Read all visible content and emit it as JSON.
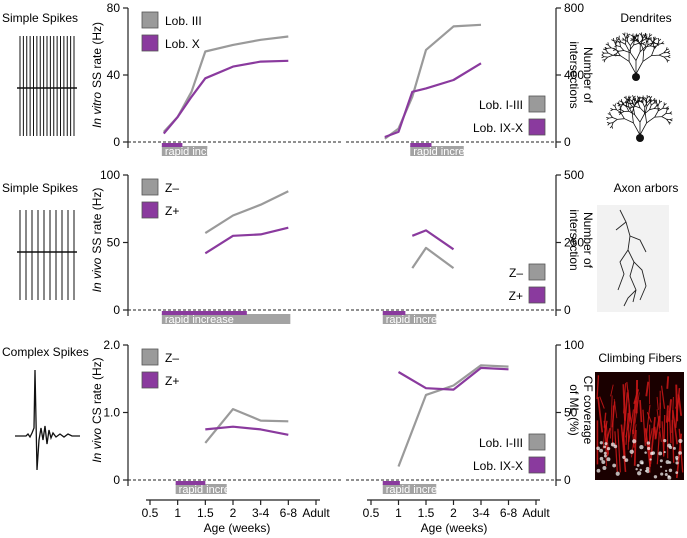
{
  "figure": {
    "xlabel": "Age (weeks)",
    "x_categories": [
      "0.5",
      "1",
      "1.5",
      "2",
      "3-4",
      "6-8",
      "Adult"
    ],
    "bar_label": "rapid increase"
  },
  "colors": {
    "gray": "#9a9a9a",
    "purple": "#8a3a9e",
    "axis": "#222222",
    "bar_gray": "#a3a3a3",
    "bar_purple": "#8a3a9e",
    "bar_text": "#ffffff",
    "dendrite": "#111111",
    "cf_red": "#d01818"
  },
  "rows": [
    {
      "side_label": "Simple Spikes",
      "left_ylabel_italic": "In vitro",
      "left_ylabel_rest": "SS rate (Hz)",
      "right_ylabel_line1": "Number of",
      "right_ylabel_line2": "intersections",
      "right_image_label": "Dendrites"
    },
    {
      "side_label": "Simple Spikes",
      "left_ylabel_italic": "In vivo",
      "left_ylabel_rest": "SS rate (Hz)",
      "right_ylabel_line1": "Number of",
      "right_ylabel_line2": "intersection",
      "right_image_label": "Axon arbors"
    },
    {
      "side_label": "Complex Spikes",
      "left_ylabel_italic": "In vivo",
      "left_ylabel_rest": "CS rate (Hz)",
      "right_ylabel_line1": "CF coverage",
      "right_ylabel_line2": "of ML (%)",
      "right_image_label": "Climbing Fibers"
    }
  ],
  "chart_data": [
    {
      "type": "line",
      "panel": "A-left",
      "ylim": [
        0,
        80
      ],
      "yticks": [
        "0",
        "40",
        "80"
      ],
      "legend_position": "top-left",
      "series": [
        {
          "name": "Lob. III",
          "color": "gray",
          "x": [
            0.5,
            1,
            1.5,
            2,
            3,
            4,
            5
          ],
          "y": [
            6,
            15,
            30,
            54,
            58,
            61,
            63
          ]
        },
        {
          "name": "Lob. X",
          "color": "purple",
          "x": [
            0.5,
            1,
            1.5,
            2,
            3,
            4,
            5
          ],
          "y": [
            5,
            15,
            27,
            38,
            45,
            48,
            48.5
          ]
        }
      ],
      "bars": [
        {
          "label": "rapid increase",
          "start": 0.5,
          "end": 2,
          "purple_end": 1.17
        }
      ]
    },
    {
      "type": "line",
      "panel": "A-right",
      "ylim": [
        0,
        800
      ],
      "yticks": [
        "0",
        "400",
        "800"
      ],
      "legend_position": "bottom-right",
      "series": [
        {
          "name": "Lob. I-III",
          "color": "gray",
          "x": [
            0.5,
            1,
            1.5,
            2,
            3,
            4,
            5
          ],
          "y": [
            20,
            80,
            270,
            550,
            690,
            700,
            0
          ]
        },
        {
          "name": "Lob. IX-X",
          "color": "purple",
          "x": [
            0.5,
            1,
            1.5,
            2,
            3,
            4,
            5
          ],
          "y": [
            30,
            60,
            300,
            320,
            370,
            470,
            0
          ]
        }
      ],
      "bars": [
        {
          "label": "rapid increase",
          "start": 1.5,
          "end": 3.3,
          "purple_end": 2.2
        }
      ]
    },
    {
      "type": "line",
      "panel": "B-left",
      "ylim": [
        0,
        100
      ],
      "yticks": [
        "0",
        "50",
        "100"
      ],
      "legend_position": "top-left",
      "series": [
        {
          "name": "Z–",
          "color": "gray",
          "x": [
            2,
            3,
            4,
            5
          ],
          "y": [
            57,
            70,
            78,
            88
          ]
        },
        {
          "name": "Z+",
          "color": "purple",
          "x": [
            2,
            3,
            4,
            5
          ],
          "y": [
            42,
            55,
            56,
            61
          ]
        }
      ],
      "bars": [
        {
          "label": "rapid increase",
          "start": 0.5,
          "end": 5,
          "purple_end": 3.5
        }
      ]
    },
    {
      "type": "line",
      "panel": "B-right",
      "ylim": [
        0,
        500
      ],
      "yticks": [
        "0",
        "250",
        "500"
      ],
      "legend_position": "bottom-right",
      "series": [
        {
          "name": "Z–",
          "color": "gray",
          "x": [
            1.5,
            2,
            3
          ],
          "y": [
            155,
            230,
            155
          ]
        },
        {
          "name": "Z+",
          "color": "purple",
          "x": [
            1.5,
            2,
            3
          ],
          "y": [
            275,
            295,
            225
          ]
        }
      ],
      "bars": [
        {
          "label": "rapid increase",
          "start": 0.5,
          "end": 2.3,
          "purple_end": 1.25
        }
      ]
    },
    {
      "type": "line",
      "panel": "C-left",
      "ylim": [
        0,
        2.0
      ],
      "yticks": [
        "0",
        "1.0",
        "2.0"
      ],
      "legend_position": "top-left",
      "series": [
        {
          "name": "Z–",
          "color": "gray",
          "x": [
            2,
            3,
            4,
            5
          ],
          "y": [
            0.55,
            1.05,
            0.88,
            0.87
          ]
        },
        {
          "name": "Z+",
          "color": "purple",
          "x": [
            2,
            3,
            4,
            5
          ],
          "y": [
            0.75,
            0.79,
            0.75,
            0.67
          ]
        }
      ],
      "bars": [
        {
          "label": "rapid increase",
          "start": 1,
          "end": 2.7,
          "purple_end": 2.0
        }
      ]
    },
    {
      "type": "line",
      "panel": "C-right",
      "ylim": [
        0,
        100
      ],
      "yticks": [
        "0",
        "50",
        "100"
      ],
      "legend_position": "bottom-right",
      "series": [
        {
          "name": "Lob. I-III",
          "color": "gray",
          "x": [
            1,
            2,
            3,
            4,
            5
          ],
          "y": [
            10,
            63,
            70,
            85,
            84
          ]
        },
        {
          "name": "Lob. IX-X",
          "color": "purple",
          "x": [
            1,
            2,
            3,
            4,
            5
          ],
          "y": [
            80,
            68,
            67,
            83,
            82
          ]
        }
      ],
      "bars": [
        {
          "label": "rapid increase",
          "start": 0.5,
          "end": 2.3,
          "purple_end": 1.05
        }
      ]
    }
  ]
}
